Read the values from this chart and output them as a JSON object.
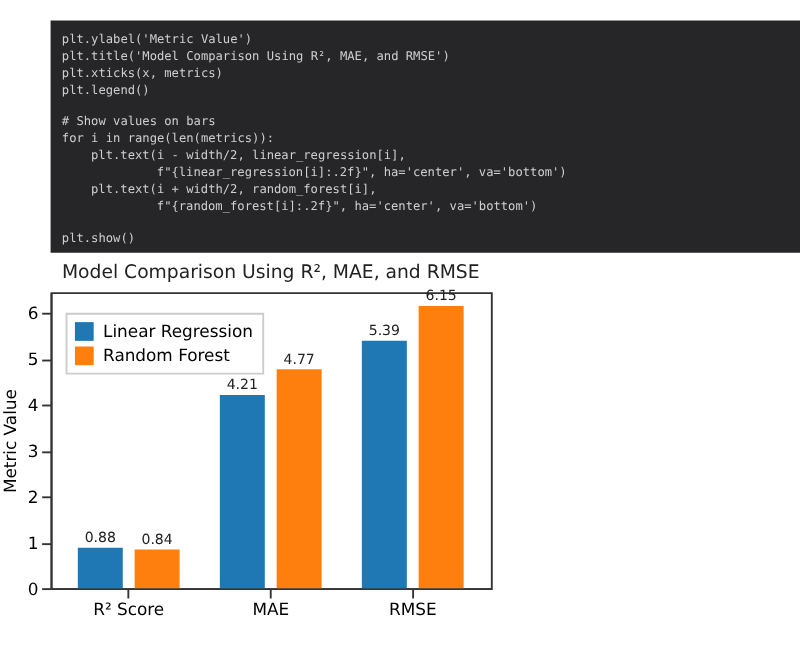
{
  "chart_data": {
    "type": "bar",
    "title": "Model Comparison Using R², MAE, and RMSE",
    "ylabel": "Metric Value",
    "categories": [
      "R² Score",
      "MAE",
      "RMSE"
    ],
    "series": [
      {
        "name": "Linear Regression",
        "color": "#1f77b4",
        "values": [
          0.88,
          4.21,
          5.39
        ]
      },
      {
        "name": "Random Forest",
        "color": "#ff7f0e",
        "values": [
          0.84,
          4.77,
          6.15
        ]
      }
    ],
    "ylim": [
      0,
      6.45
    ],
    "yticks": [
      0,
      1,
      2,
      3,
      4,
      5,
      6
    ],
    "grid": false,
    "legend": "top left",
    "data_labels": true,
    "annotations": [
      "plt.ylabel('Metric Value')",
      "plt.title('Model Comparison Using R², MAE, and RMSE')",
      "plt.xticks(x, metrics)",
      "plt.legend()",
      "# Show values on bars",
      "for i in range(len(metrics)):",
      "    plt.text(i - width/2, linear_regression[i],",
      "             f\"{linear_regression[i]:.2f}\", ha='center', va='bottom')",
      "    plt.text(i + width/2, random_forest[i],",
      "             f\"{random_forest[i]:.2f}\", ha='center', va='bottom')",
      "plt.show()"
    ]
  }
}
